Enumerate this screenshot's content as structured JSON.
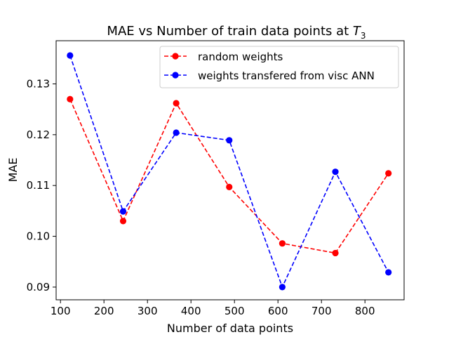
{
  "chart_data": {
    "type": "line",
    "title_main": "MAE vs Number of train data points at ",
    "title_math_symbol": "T",
    "title_math_subscript": "3",
    "xlabel": "Number of data points",
    "ylabel": "MAE",
    "xlim": [
      90,
      890
    ],
    "ylim": [
      0.0875,
      0.1385
    ],
    "xticks": [
      100,
      200,
      300,
      400,
      500,
      600,
      700,
      800
    ],
    "yticks": [
      0.09,
      0.1,
      0.11,
      0.12,
      0.13
    ],
    "ytick_labels": [
      "0.09",
      "0.10",
      "0.11",
      "0.12",
      "0.13"
    ],
    "grid": false,
    "legend_position": "top-right",
    "x": [
      122,
      244,
      366,
      488,
      610,
      732,
      854
    ],
    "series": [
      {
        "name": "random weights",
        "color": "#ff0000",
        "linestyle": "dashed",
        "marker": "circle",
        "values": [
          0.127,
          0.103,
          0.1262,
          0.1097,
          0.0986,
          0.0967,
          0.1124
        ]
      },
      {
        "name": "weights transfered from visc ANN",
        "color": "#0000ff",
        "linestyle": "dashed",
        "marker": "circle",
        "values": [
          0.1356,
          0.1049,
          0.1204,
          0.1189,
          0.09,
          0.1127,
          0.0929
        ]
      }
    ]
  }
}
